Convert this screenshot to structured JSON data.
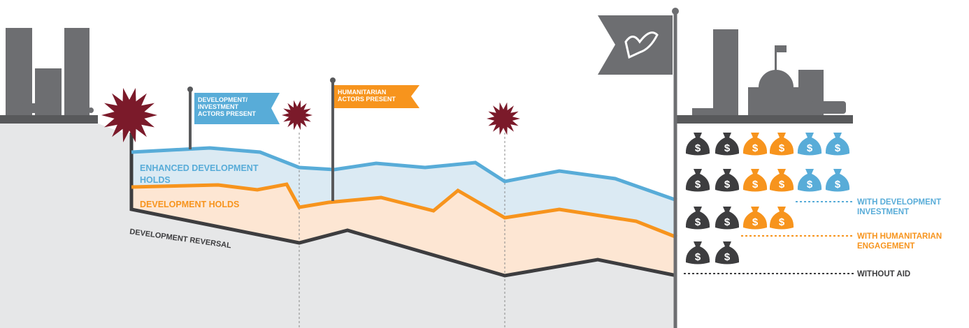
{
  "flags": [
    {
      "lines": [
        "DEVELOPMENT/",
        "INVESTMENT",
        "ACTORS PRESENT"
      ]
    },
    {
      "lines": [
        "HUMANITARIAN",
        "ACTORS PRESENT"
      ]
    }
  ],
  "zones": [
    {
      "lines": [
        "ENHANCED DEVELOPMENT",
        "HOLDS"
      ]
    },
    {
      "lines": [
        "DEVELOPMENT HOLDS"
      ]
    },
    {
      "lines": [
        "DEVELOPMENT REVERSAL"
      ]
    }
  ],
  "bag_symbol": "$",
  "legend": [
    {
      "lines": [
        "WITH DEVELOPMENT",
        "INVESTMENT"
      ]
    },
    {
      "lines": [
        "WITH HUMANITARIAN",
        "ENGAGEMENT"
      ]
    },
    {
      "lines": [
        "WITHOUT AID"
      ]
    }
  ]
}
